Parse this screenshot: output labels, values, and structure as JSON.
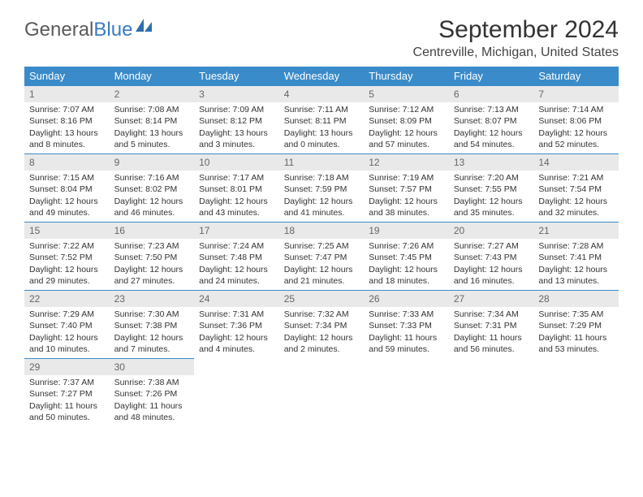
{
  "logo": {
    "part1": "General",
    "part2": "Blue"
  },
  "title": "September 2024",
  "location": "Centreville, Michigan, United States",
  "days_of_week": [
    "Sunday",
    "Monday",
    "Tuesday",
    "Wednesday",
    "Thursday",
    "Friday",
    "Saturday"
  ],
  "colors": {
    "header_bg": "#3a8bc9",
    "header_text": "#ffffff",
    "band_bg": "#e9e9e9",
    "band_border": "#3a8bc9",
    "logo_gray": "#5a5a5a",
    "logo_blue": "#3a7bbf",
    "text": "#333333"
  },
  "weeks": [
    [
      {
        "n": "1",
        "sr": "Sunrise: 7:07 AM",
        "ss": "Sunset: 8:16 PM",
        "dl": "Daylight: 13 hours and 8 minutes."
      },
      {
        "n": "2",
        "sr": "Sunrise: 7:08 AM",
        "ss": "Sunset: 8:14 PM",
        "dl": "Daylight: 13 hours and 5 minutes."
      },
      {
        "n": "3",
        "sr": "Sunrise: 7:09 AM",
        "ss": "Sunset: 8:12 PM",
        "dl": "Daylight: 13 hours and 3 minutes."
      },
      {
        "n": "4",
        "sr": "Sunrise: 7:11 AM",
        "ss": "Sunset: 8:11 PM",
        "dl": "Daylight: 13 hours and 0 minutes."
      },
      {
        "n": "5",
        "sr": "Sunrise: 7:12 AM",
        "ss": "Sunset: 8:09 PM",
        "dl": "Daylight: 12 hours and 57 minutes."
      },
      {
        "n": "6",
        "sr": "Sunrise: 7:13 AM",
        "ss": "Sunset: 8:07 PM",
        "dl": "Daylight: 12 hours and 54 minutes."
      },
      {
        "n": "7",
        "sr": "Sunrise: 7:14 AM",
        "ss": "Sunset: 8:06 PM",
        "dl": "Daylight: 12 hours and 52 minutes."
      }
    ],
    [
      {
        "n": "8",
        "sr": "Sunrise: 7:15 AM",
        "ss": "Sunset: 8:04 PM",
        "dl": "Daylight: 12 hours and 49 minutes."
      },
      {
        "n": "9",
        "sr": "Sunrise: 7:16 AM",
        "ss": "Sunset: 8:02 PM",
        "dl": "Daylight: 12 hours and 46 minutes."
      },
      {
        "n": "10",
        "sr": "Sunrise: 7:17 AM",
        "ss": "Sunset: 8:01 PM",
        "dl": "Daylight: 12 hours and 43 minutes."
      },
      {
        "n": "11",
        "sr": "Sunrise: 7:18 AM",
        "ss": "Sunset: 7:59 PM",
        "dl": "Daylight: 12 hours and 41 minutes."
      },
      {
        "n": "12",
        "sr": "Sunrise: 7:19 AM",
        "ss": "Sunset: 7:57 PM",
        "dl": "Daylight: 12 hours and 38 minutes."
      },
      {
        "n": "13",
        "sr": "Sunrise: 7:20 AM",
        "ss": "Sunset: 7:55 PM",
        "dl": "Daylight: 12 hours and 35 minutes."
      },
      {
        "n": "14",
        "sr": "Sunrise: 7:21 AM",
        "ss": "Sunset: 7:54 PM",
        "dl": "Daylight: 12 hours and 32 minutes."
      }
    ],
    [
      {
        "n": "15",
        "sr": "Sunrise: 7:22 AM",
        "ss": "Sunset: 7:52 PM",
        "dl": "Daylight: 12 hours and 29 minutes."
      },
      {
        "n": "16",
        "sr": "Sunrise: 7:23 AM",
        "ss": "Sunset: 7:50 PM",
        "dl": "Daylight: 12 hours and 27 minutes."
      },
      {
        "n": "17",
        "sr": "Sunrise: 7:24 AM",
        "ss": "Sunset: 7:48 PM",
        "dl": "Daylight: 12 hours and 24 minutes."
      },
      {
        "n": "18",
        "sr": "Sunrise: 7:25 AM",
        "ss": "Sunset: 7:47 PM",
        "dl": "Daylight: 12 hours and 21 minutes."
      },
      {
        "n": "19",
        "sr": "Sunrise: 7:26 AM",
        "ss": "Sunset: 7:45 PM",
        "dl": "Daylight: 12 hours and 18 minutes."
      },
      {
        "n": "20",
        "sr": "Sunrise: 7:27 AM",
        "ss": "Sunset: 7:43 PM",
        "dl": "Daylight: 12 hours and 16 minutes."
      },
      {
        "n": "21",
        "sr": "Sunrise: 7:28 AM",
        "ss": "Sunset: 7:41 PM",
        "dl": "Daylight: 12 hours and 13 minutes."
      }
    ],
    [
      {
        "n": "22",
        "sr": "Sunrise: 7:29 AM",
        "ss": "Sunset: 7:40 PM",
        "dl": "Daylight: 12 hours and 10 minutes."
      },
      {
        "n": "23",
        "sr": "Sunrise: 7:30 AM",
        "ss": "Sunset: 7:38 PM",
        "dl": "Daylight: 12 hours and 7 minutes."
      },
      {
        "n": "24",
        "sr": "Sunrise: 7:31 AM",
        "ss": "Sunset: 7:36 PM",
        "dl": "Daylight: 12 hours and 4 minutes."
      },
      {
        "n": "25",
        "sr": "Sunrise: 7:32 AM",
        "ss": "Sunset: 7:34 PM",
        "dl": "Daylight: 12 hours and 2 minutes."
      },
      {
        "n": "26",
        "sr": "Sunrise: 7:33 AM",
        "ss": "Sunset: 7:33 PM",
        "dl": "Daylight: 11 hours and 59 minutes."
      },
      {
        "n": "27",
        "sr": "Sunrise: 7:34 AM",
        "ss": "Sunset: 7:31 PM",
        "dl": "Daylight: 11 hours and 56 minutes."
      },
      {
        "n": "28",
        "sr": "Sunrise: 7:35 AM",
        "ss": "Sunset: 7:29 PM",
        "dl": "Daylight: 11 hours and 53 minutes."
      }
    ],
    [
      {
        "n": "29",
        "sr": "Sunrise: 7:37 AM",
        "ss": "Sunset: 7:27 PM",
        "dl": "Daylight: 11 hours and 50 minutes."
      },
      {
        "n": "30",
        "sr": "Sunrise: 7:38 AM",
        "ss": "Sunset: 7:26 PM",
        "dl": "Daylight: 11 hours and 48 minutes."
      },
      {
        "empty": true
      },
      {
        "empty": true
      },
      {
        "empty": true
      },
      {
        "empty": true
      },
      {
        "empty": true
      }
    ]
  ]
}
